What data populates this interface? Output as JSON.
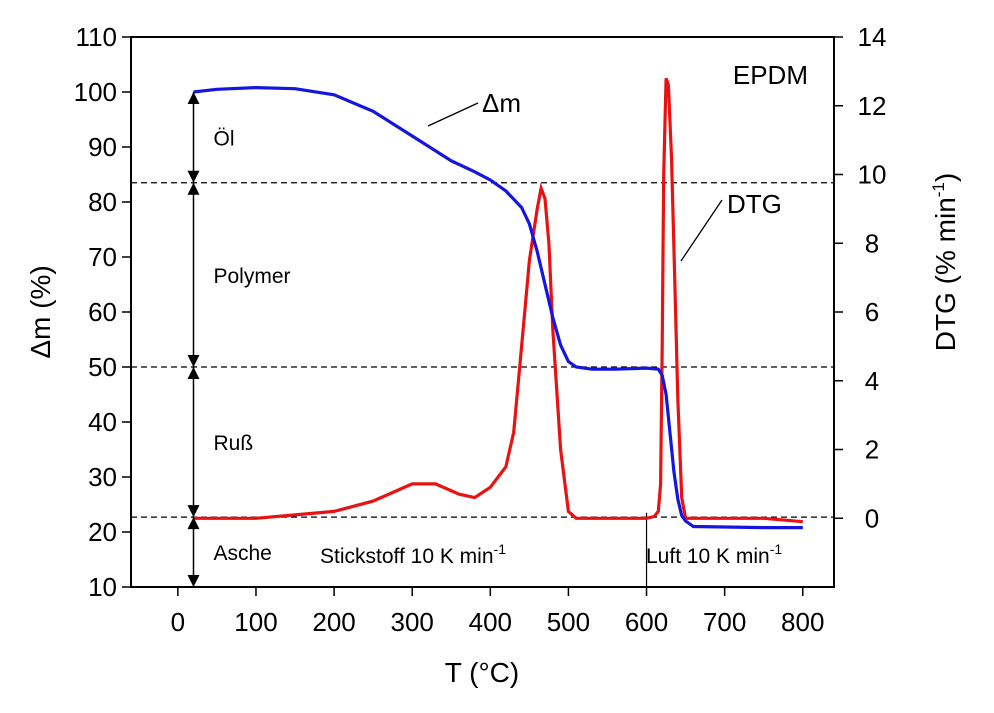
{
  "chart_data": {
    "type": "line",
    "title": "EPDM",
    "xlabel": "T (°C)",
    "ylabel_left": "Δm (%)",
    "ylabel_right_main": "DTG (% min",
    "ylabel_right_sup": "-1",
    "ylabel_right_end": ")",
    "xlim": [
      -60,
      840
    ],
    "ylim_left": [
      10,
      110
    ],
    "ylim_right": [
      -2,
      14
    ],
    "x_ticks": [
      "0",
      "100",
      "200",
      "300",
      "400",
      "500",
      "600",
      "700",
      "800"
    ],
    "y_left_ticks": [
      "10",
      "20",
      "30",
      "40",
      "50",
      "60",
      "70",
      "80",
      "90",
      "100",
      "110"
    ],
    "y_right_ticks": [
      "0",
      "2",
      "4",
      "6",
      "8",
      "10",
      "12",
      "14"
    ],
    "grid": false,
    "colors": {
      "dm": "#1515e0",
      "dtg": "#e81212",
      "guide": "#000000"
    },
    "series": [
      {
        "name": "Δm",
        "axis": "left",
        "x": [
          20,
          50,
          100,
          150,
          200,
          250,
          300,
          350,
          380,
          400,
          420,
          440,
          450,
          460,
          470,
          480,
          490,
          500,
          510,
          530,
          560,
          600,
          615,
          620,
          625,
          630,
          635,
          640,
          645,
          650,
          660,
          700,
          750,
          800
        ],
        "y": [
          100,
          100.5,
          100.8,
          100.6,
          99.5,
          96.5,
          92,
          87.5,
          85.5,
          84,
          82,
          79,
          76,
          71,
          65,
          59,
          54,
          51,
          50,
          49.6,
          49.6,
          49.8,
          49.6,
          48.5,
          45,
          38,
          31,
          26,
          23,
          22,
          21,
          20.9,
          20.8,
          20.8
        ]
      },
      {
        "name": "DTG",
        "axis": "right",
        "x": [
          20,
          100,
          200,
          250,
          300,
          330,
          360,
          380,
          400,
          420,
          430,
          440,
          450,
          460,
          465,
          470,
          475,
          480,
          490,
          500,
          510,
          520,
          530,
          580,
          600,
          610,
          615,
          618,
          620,
          622,
          625,
          628,
          632,
          636,
          640,
          645,
          650,
          700,
          750,
          800
        ],
        "y": [
          0,
          0,
          0.2,
          0.5,
          1.0,
          1.0,
          0.7,
          0.6,
          0.9,
          1.5,
          2.5,
          5.0,
          7.5,
          9.0,
          9.6,
          9.3,
          8.0,
          5.5,
          2.0,
          0.2,
          0.0,
          0.0,
          0.0,
          0.0,
          0.0,
          0.05,
          0.2,
          1.0,
          5.0,
          10.0,
          12.8,
          12.6,
          10.5,
          7.0,
          3.5,
          0.6,
          0.0,
          0.0,
          0.0,
          -0.1
        ]
      }
    ],
    "reference_lines": {
      "horizontal_dm": [
        83.5,
        50,
        22.7
      ],
      "vertical_x": 600
    },
    "range_arrows_dm": [
      {
        "from": 100,
        "to": 83.5,
        "label": "Öl"
      },
      {
        "from": 83.5,
        "to": 50,
        "label": "Polymer"
      },
      {
        "from": 50,
        "to": 22.7,
        "label": "Ruß"
      },
      {
        "from": 22.7,
        "to": 10,
        "label": "Asche"
      }
    ],
    "annotations": {
      "dm_label": "Δm",
      "dtg_label": "DTG",
      "nitrogen_main": "Stickstoff 10 K min",
      "nitrogen_sup": "-1",
      "air_main": "Luft 10 K min",
      "air_sup": "-1"
    }
  }
}
